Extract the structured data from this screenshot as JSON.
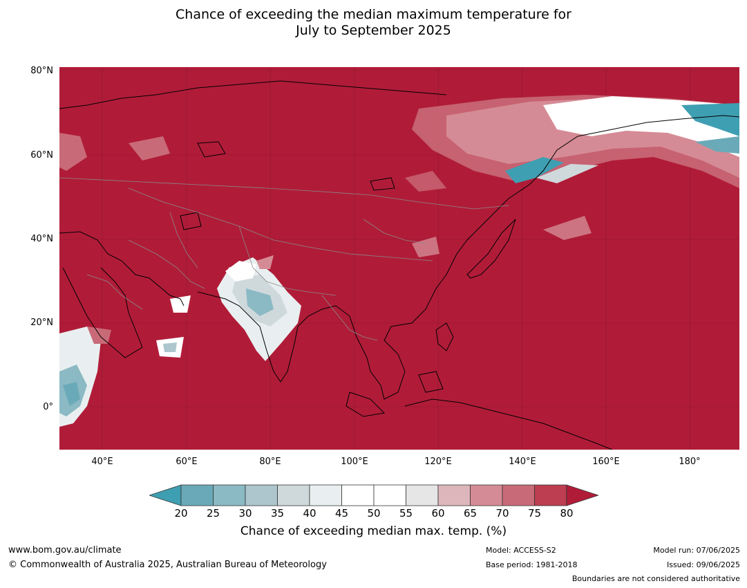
{
  "title": {
    "line1": "Chance of exceeding the median maximum temperature for",
    "line2": "July to September 2025"
  },
  "map": {
    "background_color": "#b01c38",
    "lat_labels": [
      "80°N",
      "60°N",
      "40°N",
      "20°N",
      "0°"
    ],
    "lon_labels": [
      "40°E",
      "60°E",
      "80°E",
      "100°E",
      "120°E",
      "140°E",
      "160°E",
      "180°"
    ]
  },
  "colorbar": {
    "ticks": [
      "20",
      "25",
      "30",
      "35",
      "40",
      "45",
      "50",
      "55",
      "60",
      "65",
      "70",
      "75",
      "80"
    ],
    "colors": [
      "#3f9fb2",
      "#6aaab8",
      "#8bb9c4",
      "#adc6cd",
      "#cfd9dc",
      "#e9eff0",
      "#ffffff",
      "#ffffff",
      "#e6e6e6",
      "#ddb6bb",
      "#d58b95",
      "#c96a78",
      "#bc3e50",
      "#b01c38"
    ],
    "label": "Chance of exceeding median max. temp. (%)"
  },
  "footer": {
    "website": "www.bom.gov.au/climate",
    "copyright": "© Commonwealth of Australia 2025, Australian Bureau of Meteorology",
    "model": "Model: ACCESS-S2",
    "base_period": "Base period: 1981-2018",
    "model_run": "Model run: 07/06/2025",
    "issued": "Issued: 09/06/2025",
    "disclaimer": "Boundaries are not considered authoritative"
  }
}
